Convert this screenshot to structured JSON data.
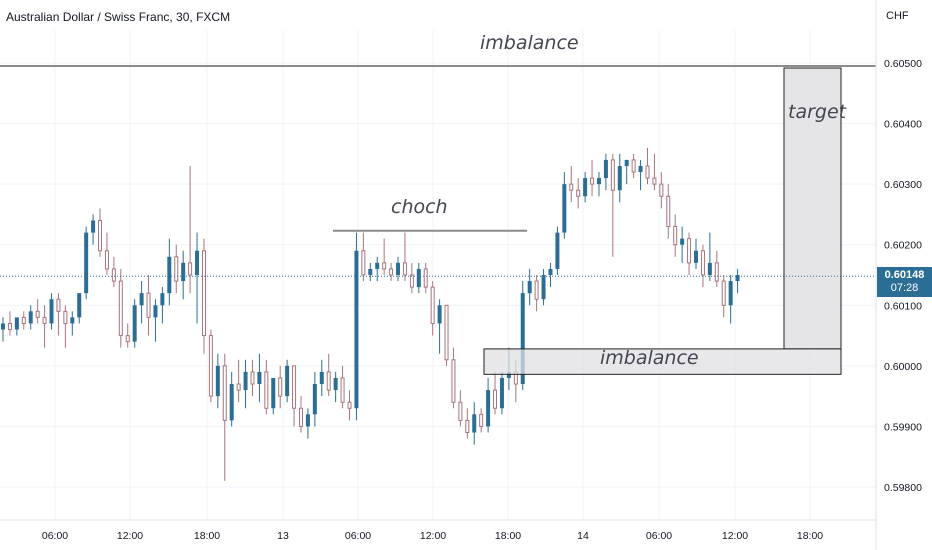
{
  "header": {
    "symbol_title": "Australian Dollar / Swiss Franc, 30, FXCM",
    "currency": "CHF"
  },
  "price_tag": {
    "price": "0.60148",
    "countdown": "07:28"
  },
  "annotations": {
    "imbalance_top": "imbalance",
    "imbalance_bottom": "imbalance",
    "choch": "choch",
    "target": "target"
  },
  "colors": {
    "bull_fill": "#2b6e95",
    "bear_wick": "#a8737e",
    "box_fill": "#e0e0e3",
    "box_border": "#222222",
    "line": "#8c8c8c",
    "grid": "#f0f3fa"
  },
  "chart_data": {
    "type": "candlestick",
    "title": "Australian Dollar / Swiss Franc, 30, FXCM",
    "ylabel": "CHF",
    "ylim": [
      0.59745,
      0.60565
    ],
    "y_ticks": [
      "0.60500",
      "0.60400",
      "0.60300",
      "0.60200",
      "0.60100",
      "0.60000",
      "0.59900",
      "0.59800"
    ],
    "x_ticks": [
      "06:00",
      "12:00",
      "18:00",
      "13",
      "06:00",
      "12:00",
      "18:00",
      "14",
      "06:00",
      "12:00",
      "18:00"
    ],
    "current_price": 0.60148,
    "horizontal_line": 0.60495,
    "choch_level": 0.60223,
    "imbalance_zone": [
      0.59986,
      0.60028
    ],
    "target_zone": [
      0.60028,
      0.60495
    ],
    "candles": [
      [
        0.6006,
        0.6008,
        0.6004,
        0.6007
      ],
      [
        0.6007,
        0.6009,
        0.6005,
        0.6006
      ],
      [
        0.6006,
        0.6008,
        0.6005,
        0.6008
      ],
      [
        0.6008,
        0.6009,
        0.6006,
        0.6007
      ],
      [
        0.6007,
        0.601,
        0.6006,
        0.6009
      ],
      [
        0.6009,
        0.6011,
        0.6007,
        0.6008
      ],
      [
        0.6008,
        0.601,
        0.6003,
        0.6007
      ],
      [
        0.6007,
        0.6012,
        0.6006,
        0.6011
      ],
      [
        0.6011,
        0.6012,
        0.6005,
        0.6009
      ],
      [
        0.6009,
        0.601,
        0.6003,
        0.6007
      ],
      [
        0.6007,
        0.6009,
        0.6005,
        0.6008
      ],
      [
        0.6008,
        0.6012,
        0.6007,
        0.6012
      ],
      [
        0.6012,
        0.6023,
        0.6011,
        0.6022
      ],
      [
        0.6022,
        0.6025,
        0.602,
        0.6024
      ],
      [
        0.6024,
        0.6026,
        0.6018,
        0.6019
      ],
      [
        0.6019,
        0.6022,
        0.6015,
        0.6016
      ],
      [
        0.6016,
        0.6018,
        0.6013,
        0.6014
      ],
      [
        0.6014,
        0.6016,
        0.6003,
        0.6005
      ],
      [
        0.6005,
        0.6007,
        0.6003,
        0.6004
      ],
      [
        0.6004,
        0.6011,
        0.6003,
        0.601
      ],
      [
        0.601,
        0.6014,
        0.6007,
        0.6012
      ],
      [
        0.6012,
        0.6015,
        0.6005,
        0.6008
      ],
      [
        0.6008,
        0.6011,
        0.6004,
        0.601
      ],
      [
        0.601,
        0.6013,
        0.6007,
        0.6012
      ],
      [
        0.6012,
        0.6021,
        0.601,
        0.6018
      ],
      [
        0.6018,
        0.602,
        0.6012,
        0.6014
      ],
      [
        0.6014,
        0.6019,
        0.6011,
        0.6017
      ],
      [
        0.6017,
        0.6033,
        0.6012,
        0.6015
      ],
      [
        0.6015,
        0.6022,
        0.6007,
        0.6019
      ],
      [
        0.6019,
        0.6021,
        0.6002,
        0.6005
      ],
      [
        0.6005,
        0.6006,
        0.5994,
        0.5995
      ],
      [
        0.5995,
        0.6002,
        0.5993,
        0.6
      ],
      [
        0.6,
        0.6002,
        0.5981,
        0.5991
      ],
      [
        0.5991,
        0.5999,
        0.599,
        0.5997
      ],
      [
        0.5997,
        0.6001,
        0.5994,
        0.5996
      ],
      [
        0.5996,
        0.6001,
        0.5993,
        0.5999
      ],
      [
        0.5999,
        0.6001,
        0.5995,
        0.5997
      ],
      [
        0.5997,
        0.6002,
        0.5994,
        0.5999
      ],
      [
        0.5999,
        0.6001,
        0.5992,
        0.5993
      ],
      [
        0.5993,
        0.5998,
        0.5992,
        0.5998
      ],
      [
        0.5998,
        0.6,
        0.5993,
        0.5995
      ],
      [
        0.5995,
        0.6001,
        0.5994,
        0.6
      ],
      [
        0.6,
        0.6,
        0.599,
        0.5993
      ],
      [
        0.5993,
        0.5995,
        0.5989,
        0.599
      ],
      [
        0.599,
        0.5993,
        0.5988,
        0.5992
      ],
      [
        0.5992,
        0.5999,
        0.599,
        0.5997
      ],
      [
        0.5997,
        0.6001,
        0.5995,
        0.5999
      ],
      [
        0.5999,
        0.6002,
        0.5995,
        0.5996
      ],
      [
        0.5996,
        0.5999,
        0.5994,
        0.5998
      ],
      [
        0.5998,
        0.6,
        0.5993,
        0.5994
      ],
      [
        0.5994,
        0.5996,
        0.5991,
        0.5993
      ],
      [
        0.5993,
        0.6022,
        0.5991,
        0.6019
      ],
      [
        0.6019,
        0.6022,
        0.6014,
        0.6015
      ],
      [
        0.6015,
        0.6017,
        0.6014,
        0.6016
      ],
      [
        0.6016,
        0.6018,
        0.6014,
        0.6017
      ],
      [
        0.6017,
        0.6021,
        0.6015,
        0.6016
      ],
      [
        0.6016,
        0.6017,
        0.6014,
        0.6015
      ],
      [
        0.6015,
        0.6018,
        0.6014,
        0.6017
      ],
      [
        0.6017,
        0.6022,
        0.6014,
        0.6015
      ],
      [
        0.6015,
        0.6017,
        0.6012,
        0.6013
      ],
      [
        0.6013,
        0.6017,
        0.6012,
        0.6016
      ],
      [
        0.6016,
        0.6017,
        0.6012,
        0.6013
      ],
      [
        0.6013,
        0.6014,
        0.6005,
        0.6007
      ],
      [
        0.6007,
        0.6011,
        0.6002,
        0.601
      ],
      [
        0.601,
        0.601,
        0.6,
        0.6001
      ],
      [
        0.6001,
        0.6003,
        0.5993,
        0.5994
      ],
      [
        0.5994,
        0.5996,
        0.599,
        0.5991
      ],
      [
        0.5991,
        0.5993,
        0.5988,
        0.5989
      ],
      [
        0.5989,
        0.5994,
        0.5987,
        0.5992
      ],
      [
        0.5992,
        0.5993,
        0.5989,
        0.599
      ],
      [
        0.599,
        0.5998,
        0.5989,
        0.5996
      ],
      [
        0.5996,
        0.5999,
        0.5992,
        0.5993
      ],
      [
        0.5993,
        0.5999,
        0.5992,
        0.5998
      ],
      [
        0.5998,
        0.6003,
        0.5996,
        0.5999
      ],
      [
        0.5999,
        0.6001,
        0.5994,
        0.5997
      ],
      [
        0.5997,
        0.6014,
        0.5996,
        0.6012
      ],
      [
        0.6012,
        0.6016,
        0.601,
        0.6014
      ],
      [
        0.6014,
        0.6015,
        0.6009,
        0.6011
      ],
      [
        0.6011,
        0.6016,
        0.601,
        0.6015
      ],
      [
        0.6015,
        0.6017,
        0.6013,
        0.6016
      ],
      [
        0.6016,
        0.6023,
        0.6015,
        0.6022
      ],
      [
        0.6022,
        0.6032,
        0.6021,
        0.603
      ],
      [
        0.603,
        0.6033,
        0.6027,
        0.6029
      ],
      [
        0.6029,
        0.6031,
        0.6026,
        0.6028
      ],
      [
        0.6028,
        0.6032,
        0.6027,
        0.6031
      ],
      [
        0.6031,
        0.6034,
        0.6028,
        0.603
      ],
      [
        0.603,
        0.6032,
        0.6028,
        0.6031
      ],
      [
        0.6031,
        0.6035,
        0.6029,
        0.6034
      ],
      [
        0.6034,
        0.6035,
        0.6018,
        0.6029
      ],
      [
        0.6029,
        0.6035,
        0.6027,
        0.6033
      ],
      [
        0.6033,
        0.6034,
        0.603,
        0.6034
      ],
      [
        0.6034,
        0.6035,
        0.6031,
        0.6032
      ],
      [
        0.6032,
        0.6034,
        0.6029,
        0.6033
      ],
      [
        0.6033,
        0.6036,
        0.603,
        0.6031
      ],
      [
        0.6031,
        0.6035,
        0.6029,
        0.603
      ],
      [
        0.603,
        0.6032,
        0.6026,
        0.6028
      ],
      [
        0.6028,
        0.603,
        0.6021,
        0.6023
      ],
      [
        0.6023,
        0.6025,
        0.6018,
        0.602
      ],
      [
        0.602,
        0.6023,
        0.6017,
        0.6021
      ],
      [
        0.6021,
        0.6022,
        0.6015,
        0.6017
      ],
      [
        0.6017,
        0.6021,
        0.6016,
        0.6019
      ],
      [
        0.6019,
        0.602,
        0.6013,
        0.6015
      ],
      [
        0.6015,
        0.6022,
        0.6014,
        0.6017
      ],
      [
        0.6017,
        0.6019,
        0.6013,
        0.6014
      ],
      [
        0.6014,
        0.6015,
        0.6008,
        0.601
      ],
      [
        0.601,
        0.6015,
        0.6007,
        0.6014
      ],
      [
        0.6014,
        0.6016,
        0.6012,
        0.6015
      ]
    ]
  }
}
